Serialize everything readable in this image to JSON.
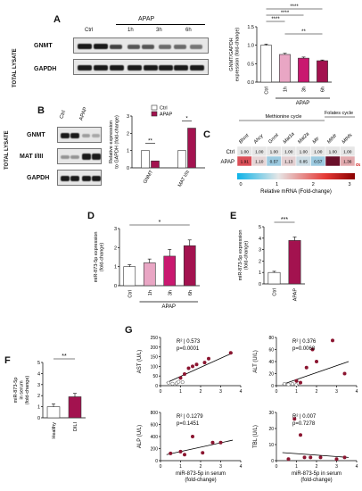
{
  "panels": {
    "A": {
      "letter": "A",
      "header": "APAP",
      "lanes": [
        "Ctrl",
        "1h",
        "3h",
        "6h"
      ],
      "side_label": "TOTAL LYSATE",
      "rows": [
        "GNMT",
        "GAPDH"
      ]
    },
    "B": {
      "letter": "B",
      "lanes": [
        "Ctrl",
        "APAP"
      ],
      "side_label": "TOTAL LYSATE",
      "rows": [
        "GNMT",
        "MAT I/III",
        "GAPDH"
      ]
    },
    "C": {
      "letter": "C",
      "cycle_methionine": "Methionine cycle",
      "cycle_folates": "Folates cycle",
      "genes": [
        "Bhmt",
        "Ahcy",
        "Gnmt",
        "Mat1a",
        "Mat2a",
        "Mtr",
        "Mthfr",
        "Mthfs"
      ],
      "rows": [
        "Ctrl",
        "APAP"
      ],
      "ctrl_values": [
        "1.00",
        "1.00",
        "1.00",
        "1.00",
        "1.00",
        "1.00",
        "1.00",
        "1.00"
      ],
      "apap_values": [
        "1.91",
        "1.10",
        "0.57",
        "1.13",
        "0.85",
        "0.57",
        "",
        "1.36"
      ],
      "out_of_range": "OUT OF RANGE",
      "scale_label": "Relative mRNA (Fold-change)",
      "scale_ticks": [
        "0",
        "1",
        "2",
        "3"
      ],
      "colors": {
        "low": "#3aa6d8",
        "mid": "#e0e0e0",
        "high": "#d81f2b",
        "out": "#6a0f2a"
      }
    },
    "D": {
      "letter": "D"
    },
    "E": {
      "letter": "E"
    },
    "F": {
      "letter": "F"
    },
    "G": {
      "letter": "G",
      "xlabel": "miR-873-5p in serum\n(fold-change)"
    }
  },
  "chart_data": [
    {
      "id": "A_bar",
      "type": "bar",
      "categories": [
        "Ctrl",
        "1h",
        "3h",
        "6h"
      ],
      "values": [
        1.0,
        0.75,
        0.65,
        0.58
      ],
      "errors": [
        0.03,
        0.03,
        0.03,
        0.02
      ],
      "ylabel": "GNMT/GAPDH\nexpression (fold-change)",
      "ylim": [
        0,
        1.5
      ],
      "yticks": [
        "0.0",
        "0.5",
        "1.0",
        "1.5"
      ],
      "group_label": "APAP",
      "significance": [
        "****",
        "****",
        "****",
        "**"
      ],
      "colors": [
        "#ffffff",
        "#e9a6c4",
        "#c9186f",
        "#a3124f"
      ]
    },
    {
      "id": "B_bar",
      "type": "bar",
      "groups": [
        "GNMT",
        "MAT I/III"
      ],
      "series": [
        {
          "name": "Ctrl",
          "values": [
            1.0,
            1.0
          ],
          "color": "#ffffff"
        },
        {
          "name": "APAP",
          "values": [
            0.4,
            2.3
          ],
          "color": "#a3124f"
        }
      ],
      "ylabel": "Relative expression\nto GAPDH (fold-change)",
      "ylim": [
        0,
        3
      ],
      "yticks": [
        "0",
        "1",
        "2",
        "3"
      ],
      "significance": [
        "**",
        "*"
      ]
    },
    {
      "id": "D_bar",
      "type": "bar",
      "categories": [
        "Ctrl",
        "1h",
        "3h",
        "6h"
      ],
      "values": [
        1.0,
        1.2,
        1.55,
        2.1
      ],
      "errors": [
        0.1,
        0.2,
        0.35,
        0.3
      ],
      "ylabel": "miR-873-5p expression\n(fold-change)",
      "ylim": [
        0,
        3
      ],
      "yticks": [
        "0",
        "1",
        "2",
        "3"
      ],
      "group_label": "APAP",
      "significance": [
        "*"
      ],
      "colors": [
        "#ffffff",
        "#e9a6c4",
        "#c9186f",
        "#a3124f"
      ]
    },
    {
      "id": "E_bar",
      "type": "bar",
      "categories": [
        "Ctrl",
        "APAP"
      ],
      "values": [
        1.0,
        3.8
      ],
      "errors": [
        0.1,
        0.3
      ],
      "ylabel": "miR-873-5p expression\n(fold-change)",
      "ylim": [
        0,
        5
      ],
      "yticks": [
        "0",
        "1",
        "2",
        "3",
        "4",
        "5"
      ],
      "significance": [
        "***"
      ],
      "colors": [
        "#ffffff",
        "#a3124f"
      ]
    },
    {
      "id": "F_bar",
      "type": "bar",
      "categories": [
        "Healthy",
        "DILI"
      ],
      "values": [
        1.0,
        1.9
      ],
      "errors": [
        0.25,
        0.3
      ],
      "ylabel": "miR-873-5p\nin serum\n(fold-change)",
      "ylim": [
        0,
        5
      ],
      "yticks": [
        "0",
        "1",
        "2",
        "3",
        "4",
        "5"
      ],
      "significance": [
        "**"
      ],
      "colors": [
        "#ffffff",
        "#a3124f"
      ]
    },
    {
      "id": "G_AST",
      "type": "scatter",
      "ylabel": "AST (U/L)",
      "stat1": "R² | 0.573",
      "stat2": "p=0.0001",
      "xlim": [
        0,
        4
      ],
      "ylim": [
        0,
        250
      ],
      "xticks": [
        "0",
        "1",
        "2",
        "3",
        "4"
      ],
      "yticks": [
        "0",
        "50",
        "100",
        "150",
        "200",
        "250"
      ],
      "open_points": [
        [
          0.4,
          15
        ],
        [
          0.6,
          10
        ],
        [
          0.8,
          12
        ],
        [
          0.9,
          20
        ],
        [
          1.1,
          18
        ]
      ],
      "filled_points": [
        [
          1.0,
          40
        ],
        [
          1.2,
          60
        ],
        [
          1.4,
          90
        ],
        [
          1.6,
          100
        ],
        [
          1.8,
          110
        ],
        [
          2.2,
          120
        ],
        [
          2.4,
          140
        ],
        [
          3.5,
          170
        ]
      ],
      "fit": [
        [
          0.3,
          15
        ],
        [
          3.6,
          170
        ]
      ]
    },
    {
      "id": "G_ALT",
      "type": "scatter",
      "ylabel": "ALT (U/L)",
      "stat1": "R² | 0.376",
      "stat2": "p=0.0068",
      "xlim": [
        0,
        4
      ],
      "ylim": [
        0,
        80
      ],
      "xticks": [
        "0",
        "1",
        "2",
        "3",
        "4"
      ],
      "yticks": [
        "0",
        "20",
        "40",
        "60",
        "80"
      ],
      "open_points": [
        [
          0.4,
          3
        ],
        [
          0.6,
          2
        ],
        [
          0.8,
          3
        ],
        [
          1.0,
          2
        ],
        [
          1.1,
          4
        ]
      ],
      "filled_points": [
        [
          1.0,
          8
        ],
        [
          1.2,
          5
        ],
        [
          1.5,
          30
        ],
        [
          1.8,
          60
        ],
        [
          2.0,
          40
        ],
        [
          2.8,
          75
        ],
        [
          3.4,
          20
        ]
      ],
      "fit": [
        [
          0.3,
          2
        ],
        [
          3.6,
          40
        ]
      ]
    },
    {
      "id": "G_ALP",
      "type": "scatter",
      "ylabel": "ALP (U/L)",
      "stat1": "R² | 0.1279",
      "stat2": "p=0.1451",
      "xlim": [
        0,
        4
      ],
      "ylim": [
        0,
        800
      ],
      "xticks": [
        "0",
        "1",
        "2",
        "3",
        "4"
      ],
      "yticks": [
        "0",
        "200",
        "400",
        "600",
        "800"
      ],
      "open_points": [],
      "filled_points": [
        [
          0.5,
          120
        ],
        [
          1.0,
          150
        ],
        [
          1.2,
          100
        ],
        [
          1.6,
          400
        ],
        [
          2.1,
          130
        ],
        [
          2.6,
          300
        ],
        [
          3.0,
          300
        ]
      ],
      "fit": [
        [
          0.3,
          100
        ],
        [
          3.6,
          340
        ]
      ]
    },
    {
      "id": "G_TBL",
      "type": "scatter",
      "ylabel": "TBL (U/L)",
      "stat1": "R² | 0.007",
      "stat2": "p=0.7278",
      "xlim": [
        0,
        4
      ],
      "ylim": [
        0,
        30
      ],
      "xticks": [
        "0",
        "1",
        "2",
        "3",
        "4"
      ],
      "yticks": [
        "0",
        "10",
        "20",
        "30"
      ],
      "open_points": [],
      "filled_points": [
        [
          0.6,
          1
        ],
        [
          0.9,
          26
        ],
        [
          1.2,
          16
        ],
        [
          1.4,
          2
        ],
        [
          1.7,
          2
        ],
        [
          2.2,
          2
        ],
        [
          3.0,
          1
        ],
        [
          3.4,
          2
        ]
      ],
      "fit": [
        [
          0.3,
          5
        ],
        [
          3.6,
          2
        ]
      ]
    }
  ]
}
